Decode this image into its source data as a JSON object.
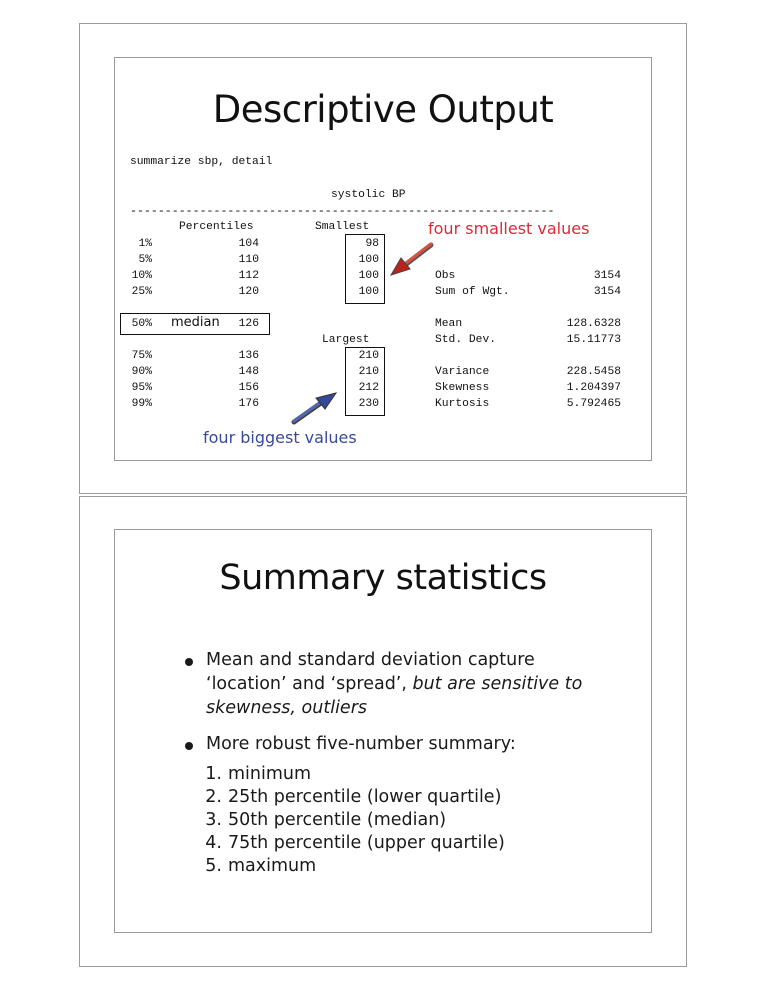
{
  "slide1": {
    "title": "Descriptive Output",
    "command": "summarize sbp, detail",
    "variable_label": "systolic BP",
    "dashes": "-------------------------------------------------------------",
    "headers": {
      "percentiles": "Percentiles",
      "smallest": "Smallest",
      "largest": "Largest"
    },
    "upper_rows": [
      {
        "pct": "1%",
        "value": "104",
        "extreme": "98"
      },
      {
        "pct": "5%",
        "value": "110",
        "extreme": "100"
      },
      {
        "pct": "10%",
        "value": "112",
        "extreme": "100"
      },
      {
        "pct": "25%",
        "value": "120",
        "extreme": "100"
      }
    ],
    "median_row": {
      "pct": "50%",
      "label": "median",
      "value": "126"
    },
    "lower_rows": [
      {
        "pct": "75%",
        "value": "136",
        "extreme": "210"
      },
      {
        "pct": "90%",
        "value": "148",
        "extreme": "210"
      },
      {
        "pct": "95%",
        "value": "156",
        "extreme": "212"
      },
      {
        "pct": "99%",
        "value": "176",
        "extreme": "230"
      }
    ],
    "stats": [
      {
        "name": "Obs",
        "value": "3154"
      },
      {
        "name": "Sum of Wgt.",
        "value": "3154"
      },
      {
        "name": "Mean",
        "value": "128.6328"
      },
      {
        "name": "Std. Dev.",
        "value": "15.11773"
      },
      {
        "name": "Variance",
        "value": "228.5458"
      },
      {
        "name": "Skewness",
        "value": "1.204397"
      },
      {
        "name": "Kurtosis",
        "value": "5.792465"
      }
    ],
    "annotation_smallest": "four smallest values",
    "annotation_largest": "four biggest values",
    "colors": {
      "red_annotation": "#d92a3a",
      "blue_annotation": "#3a4a9a"
    }
  },
  "slide2": {
    "title": "Summary statistics",
    "bullet1": {
      "line1": "Mean and standard deviation capture",
      "line2_normal": "‘location’ and ‘spread’, ",
      "line2_italic": "but are sensitive to",
      "line3_italic": "skewness, outliers"
    },
    "bullet2": "More robust five-number summary:",
    "list": [
      {
        "num": "1.",
        "text": "minimum"
      },
      {
        "num": "2.",
        "text": "25th percentile (lower  quartile)"
      },
      {
        "num": "3.",
        "text": "50th percentile (median)"
      },
      {
        "num": "4.",
        "text": "75th percentile (upper quartile)"
      },
      {
        "num": "5.",
        "text": "maximum"
      }
    ]
  }
}
